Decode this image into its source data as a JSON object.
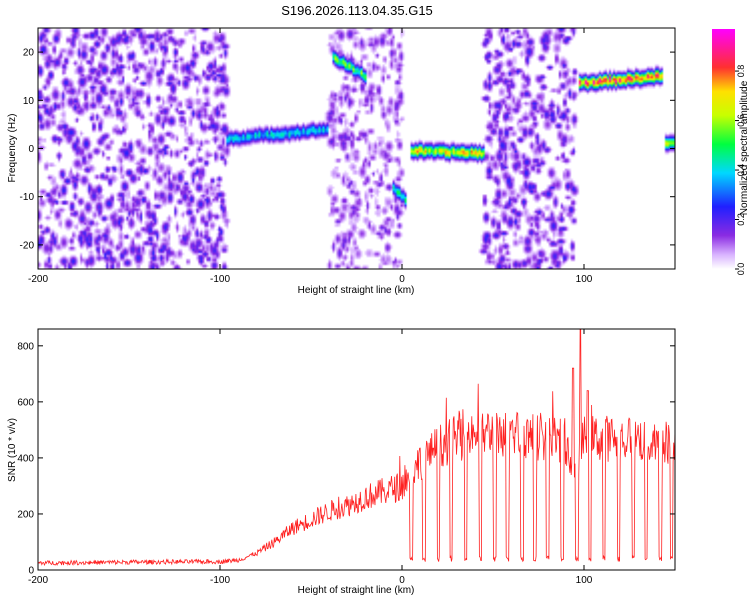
{
  "title": "S196.2026.113.04.35.G15",
  "colors": {
    "snr_line": "#ff2020",
    "frame": "#000000",
    "background": "#ffffff"
  },
  "chart_data": [
    {
      "type": "heatmap",
      "name": "spectrogram",
      "xlabel": "Height of straight line (km)",
      "ylabel": "Frequency (Hz)",
      "xlim": [
        -200,
        150
      ],
      "ylim": [
        -25,
        25
      ],
      "x_ticks": [
        -200,
        -100,
        0,
        100
      ],
      "y_ticks": [
        -20,
        -10,
        0,
        10,
        20
      ],
      "colorbar": {
        "label": "Normalized spectral amplitude",
        "range": [
          0.0,
          0.97
        ],
        "ticks": [
          "0.0",
          "0.2",
          "0.4",
          "0.6",
          "0.8"
        ],
        "tick_values": [
          0.0,
          0.2,
          0.4,
          0.6,
          0.8
        ],
        "colormap": "rainbow (white-violet-blue-cyan-green-yellow-red-magenta)"
      },
      "noise_regions": [
        {
          "x": [
            -200,
            -96
          ],
          "amplitude": 0.2
        },
        {
          "x": [
            -40,
            0
          ],
          "amplitude": 0.15
        },
        {
          "x": [
            45,
            95
          ],
          "amplitude": 0.2
        }
      ],
      "segments": [
        {
          "x": [
            -96,
            -40
          ],
          "freq_start": 2,
          "freq_end": 4,
          "amplitude": 0.4
        },
        {
          "x": [
            -38,
            -20
          ],
          "freq_start": 19,
          "freq_end": 15,
          "amplitude": 0.55
        },
        {
          "x": [
            -5,
            3
          ],
          "freq_start": -8,
          "freq_end": -11,
          "amplitude": 0.5
        },
        {
          "x": [
            5,
            45
          ],
          "freq_start": -0.5,
          "freq_end": -1,
          "amplitude": 0.7
        },
        {
          "x": [
            97,
            143
          ],
          "freq_start": 13.5,
          "freq_end": 15,
          "amplitude": 0.85
        },
        {
          "x": [
            145,
            150
          ],
          "freq_start": 1,
          "freq_end": 1,
          "amplitude": 0.6
        }
      ]
    },
    {
      "type": "line",
      "name": "snr",
      "xlabel": "Height of straight line (km)",
      "ylabel": "SNR (10 * v/v)",
      "xlim": [
        -200,
        150
      ],
      "ylim": [
        0,
        860
      ],
      "x_ticks": [
        -200,
        -100,
        0,
        100
      ],
      "y_ticks": [
        0,
        200,
        400,
        600,
        800
      ],
      "series": [
        {
          "name": "SNR",
          "x": [
            -200,
            -150,
            -100,
            -90,
            -80,
            -70,
            -60,
            -50,
            -40,
            -30,
            -20,
            -10,
            0,
            10,
            20,
            30,
            40,
            50,
            60,
            70,
            80,
            90,
            95,
            100,
            110,
            120,
            130,
            140,
            150
          ],
          "y": [
            25,
            28,
            30,
            35,
            60,
            100,
            150,
            180,
            210,
            230,
            260,
            280,
            300,
            390,
            440,
            470,
            490,
            490,
            490,
            480,
            470,
            460,
            330,
            470,
            470,
            470,
            470,
            440,
            470
          ]
        }
      ],
      "dropouts_x": [
        5,
        12,
        20,
        27,
        35,
        43,
        51,
        58,
        66,
        73,
        80,
        88,
        96,
        103,
        111,
        119,
        127,
        134,
        142,
        148
      ],
      "spikes": [
        {
          "x": 94,
          "y": 720
        },
        {
          "x": 98,
          "y": 860
        },
        {
          "x": 102,
          "y": 640
        }
      ]
    }
  ]
}
